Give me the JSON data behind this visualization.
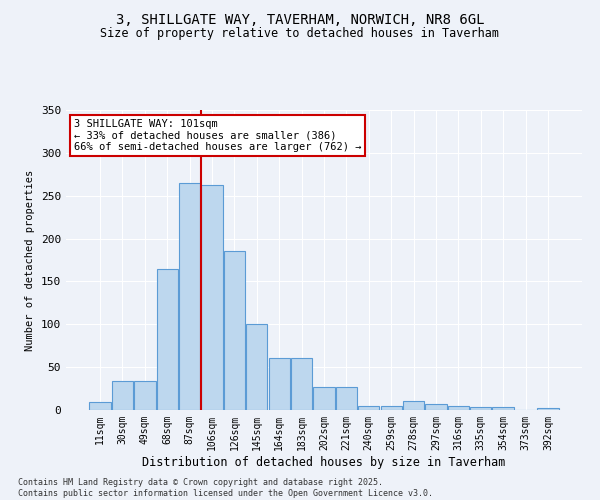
{
  "title_line1": "3, SHILLGATE WAY, TAVERHAM, NORWICH, NR8 6GL",
  "title_line2": "Size of property relative to detached houses in Taverham",
  "xlabel": "Distribution of detached houses by size in Taverham",
  "ylabel": "Number of detached properties",
  "categories": [
    "11sqm",
    "30sqm",
    "49sqm",
    "68sqm",
    "87sqm",
    "106sqm",
    "126sqm",
    "145sqm",
    "164sqm",
    "183sqm",
    "202sqm",
    "221sqm",
    "240sqm",
    "259sqm",
    "278sqm",
    "297sqm",
    "316sqm",
    "335sqm",
    "354sqm",
    "373sqm",
    "392sqm"
  ],
  "values": [
    9,
    34,
    34,
    165,
    265,
    263,
    185,
    100,
    61,
    61,
    27,
    27,
    5,
    5,
    11,
    7,
    5,
    4,
    3,
    0,
    2
  ],
  "bar_color": "#bdd7ee",
  "bar_edge_color": "#5b9bd5",
  "property_line_x": 4.5,
  "annotation_text": "3 SHILLGATE WAY: 101sqm\n← 33% of detached houses are smaller (386)\n66% of semi-detached houses are larger (762) →",
  "annotation_box_color": "#ffffff",
  "annotation_box_edge": "#cc0000",
  "vline_color": "#cc0000",
  "footer_line1": "Contains HM Land Registry data © Crown copyright and database right 2025.",
  "footer_line2": "Contains public sector information licensed under the Open Government Licence v3.0.",
  "background_color": "#eef2f9",
  "plot_background": "#eef2f9",
  "grid_color": "#ffffff",
  "ylim": [
    0,
    350
  ],
  "yticks": [
    0,
    50,
    100,
    150,
    200,
    250,
    300,
    350
  ]
}
